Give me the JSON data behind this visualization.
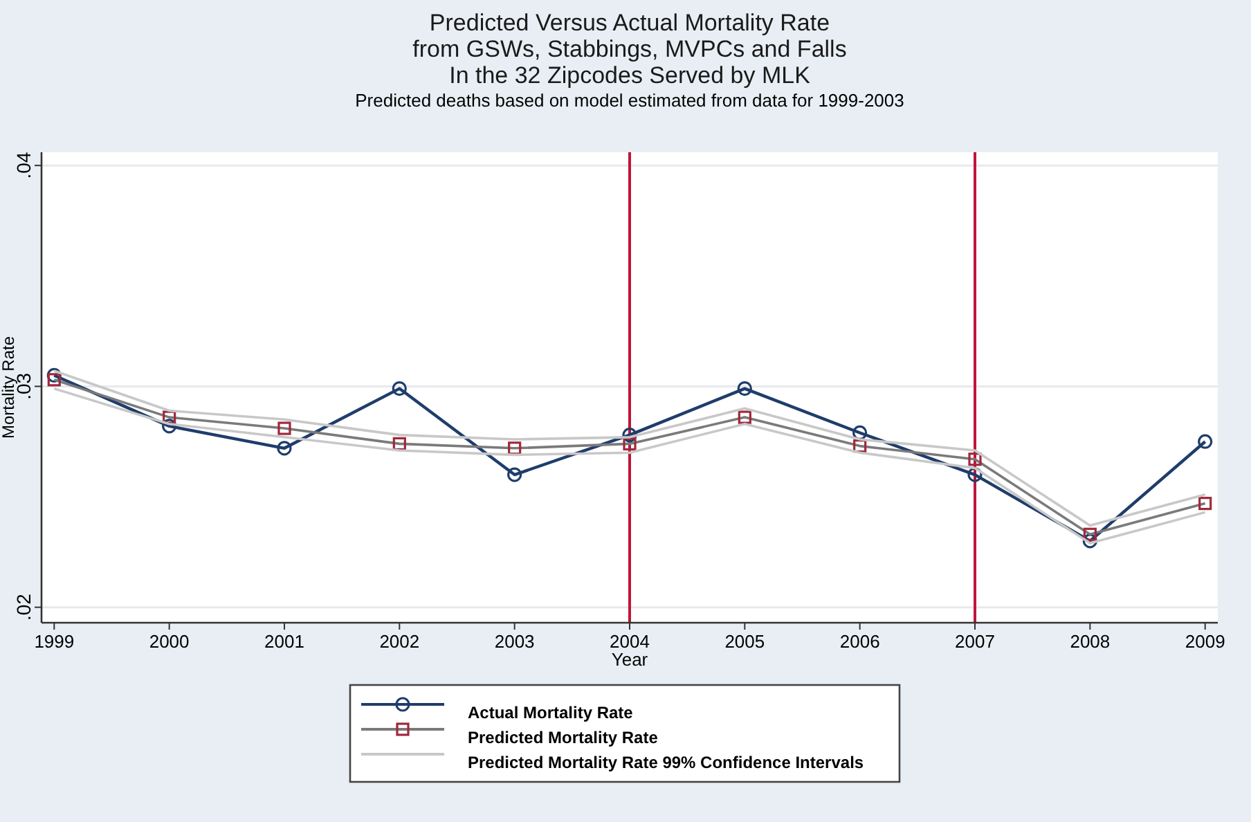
{
  "chart_data": {
    "type": "line",
    "title": "Predicted Versus Actual Mortality Rate\nfrom GSWs, Stabbings, MVPCs and Falls\nIn the 32 Zipcodes Served by MLK",
    "subtitle": "Predicted deaths based on model estimated from data for 1999-2003",
    "xlabel": "Year",
    "ylabel": "Mortality Rate",
    "x": [
      1999,
      2000,
      2001,
      2002,
      2003,
      2004,
      2005,
      2006,
      2007,
      2008,
      2009
    ],
    "xlim": [
      1998.89,
      2009.11
    ],
    "xticks": [
      1999,
      2000,
      2001,
      2002,
      2003,
      2004,
      2005,
      2006,
      2007,
      2008,
      2009
    ],
    "ylim": [
      0.0193,
      0.0406
    ],
    "yticks": [
      {
        "value": 0.02,
        "label": ".02"
      },
      {
        "value": 0.03,
        "label": ".03"
      },
      {
        "value": 0.04,
        "label": ".04"
      }
    ],
    "grid": "y",
    "legend": "bottom",
    "series": [
      {
        "name": "Actual Mortality Rate",
        "color": "#1f3d6b",
        "marker": "circle",
        "values": [
          0.0305,
          0.0282,
          0.0272,
          0.0299,
          0.026,
          0.0278,
          0.0299,
          0.0279,
          0.026,
          0.023,
          0.0275
        ]
      },
      {
        "name": "Predicted Mortality Rate",
        "color": "#7a7a7a",
        "marker": "square",
        "colors": [
          "#a0283c",
          "#a0283c",
          "#a0283c",
          "#a0283c",
          "#a0283c",
          "#a0283c",
          "#a0283c",
          "#a0283c",
          "#a0283c",
          "#a0283c",
          "#a0283c"
        ],
        "values": [
          0.0303,
          0.0286,
          0.0281,
          0.0274,
          0.0272,
          0.0274,
          0.0286,
          0.0273,
          0.0267,
          0.0233,
          0.0247
        ]
      },
      {
        "name": "Predicted Mortality Rate 99% Confidence Intervals",
        "color": "#c8c8c8",
        "marker": "none",
        "values": [
          0.0307,
          0.0289,
          0.0285,
          0.0278,
          0.0276,
          0.0277,
          0.029,
          0.0276,
          0.0271,
          0.0237,
          0.0251
        ]
      },
      {
        "color": "#c8c8c8",
        "marker": "none",
        "values": [
          0.0299,
          0.0283,
          0.0277,
          0.0271,
          0.0269,
          0.027,
          0.0283,
          0.027,
          0.0263,
          0.0229,
          0.0243
        ]
      }
    ],
    "ref_lines": [
      {
        "axis": "x",
        "value": 2004,
        "color": "#c0143c"
      },
      {
        "axis": "x",
        "value": 2007,
        "color": "#c0143c"
      }
    ]
  }
}
